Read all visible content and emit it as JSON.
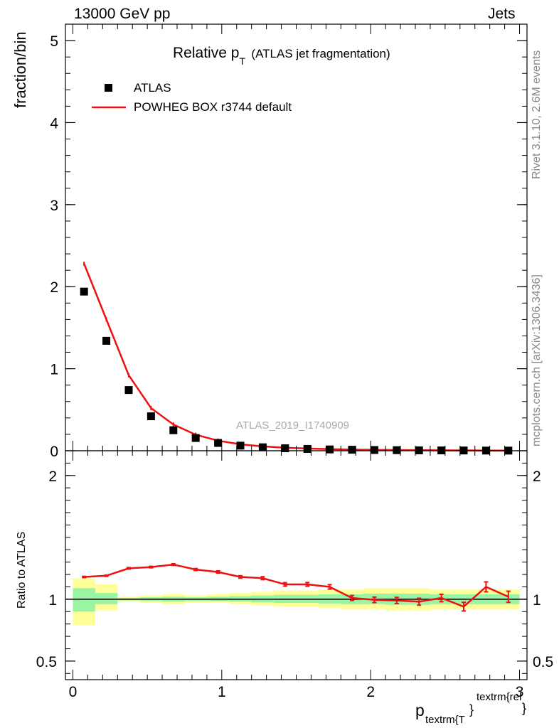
{
  "header": {
    "left": "13000 GeV pp",
    "right": "Jets"
  },
  "side_labels": {
    "rivet": "Rivet 3.1.10,  2.6M events",
    "mcplots": "mcplots.cern.ch [arXiv:1306.3436]"
  },
  "title": {
    "main": "Relative p",
    "sub": "T",
    "note": "(ATLAS jet fragmentation)"
  },
  "ylabel_main": "fraction/bin",
  "ylabel_ratio": "Ratio to ATLAS",
  "xlabel": {
    "base": "p",
    "sub": "textrm{T",
    "brace": "}",
    "sup": "textrm{rel",
    "sup_brace": "}"
  },
  "watermark": "ATLAS_2019_I1740909",
  "legend": [
    {
      "label": "ATLAS",
      "marker": "square",
      "color": "#000000"
    },
    {
      "label": "POWHEG BOX r3744 default",
      "marker": "line",
      "color": "#ee1111"
    }
  ],
  "colors": {
    "data": "#000000",
    "mc": "#ee1111",
    "band_inner": "#99f5a2",
    "band_outer": "#ffff99"
  },
  "chart_data": {
    "type": "line",
    "xlim": [
      -0.05,
      3.05
    ],
    "main": {
      "ylim": [
        0,
        5.2
      ],
      "yticks": [
        0,
        1,
        2,
        3,
        4,
        5
      ],
      "x": [
        0.075,
        0.225,
        0.375,
        0.525,
        0.675,
        0.825,
        0.975,
        1.125,
        1.275,
        1.425,
        1.575,
        1.725,
        1.875,
        2.025,
        2.175,
        2.325,
        2.475,
        2.625,
        2.775,
        2.925
      ],
      "series": [
        {
          "name": "ATLAS",
          "values": [
            1.94,
            1.34,
            0.74,
            0.42,
            0.25,
            0.155,
            0.095,
            0.062,
            0.042,
            0.03,
            0.022,
            0.016,
            0.012,
            0.009,
            0.007,
            0.005,
            0.004,
            0.003,
            0.002,
            0.0015
          ]
        },
        {
          "name": "POWHEG BOX r3744 default",
          "values": [
            2.28,
            1.6,
            0.92,
            0.52,
            0.32,
            0.195,
            0.123,
            0.078,
            0.053,
            0.037,
            0.027,
            0.019,
            0.014,
            0.01,
            0.008,
            0.006,
            0.005,
            0.004,
            0.003,
            0.002
          ]
        }
      ]
    },
    "ratio": {
      "ylim": [
        0.35,
        2.2
      ],
      "yticks": [
        0.5,
        1,
        2
      ],
      "ytick_labels": [
        "0.5",
        "1",
        "2"
      ],
      "reference": 1,
      "bins": [
        [
          0,
          0.15
        ],
        [
          0.15,
          0.3
        ],
        [
          0.3,
          0.45
        ],
        [
          0.45,
          0.6
        ],
        [
          0.6,
          0.75
        ],
        [
          0.75,
          0.9
        ],
        [
          0.9,
          1.05
        ],
        [
          1.05,
          1.2
        ],
        [
          1.2,
          1.35
        ],
        [
          1.35,
          1.5
        ],
        [
          1.5,
          1.65
        ],
        [
          1.65,
          1.8
        ],
        [
          1.8,
          1.95
        ],
        [
          1.95,
          2.1
        ],
        [
          2.1,
          2.25
        ],
        [
          2.25,
          2.4
        ],
        [
          2.4,
          2.55
        ],
        [
          2.55,
          2.7
        ],
        [
          2.7,
          2.85
        ],
        [
          2.85,
          3.0
        ]
      ],
      "band_outer": [
        [
          0.79,
          1.17
        ],
        [
          0.91,
          1.12
        ],
        [
          0.98,
          1.02
        ],
        [
          0.97,
          1.03
        ],
        [
          0.96,
          1.04
        ],
        [
          0.97,
          1.03
        ],
        [
          0.97,
          1.04
        ],
        [
          0.96,
          1.05
        ],
        [
          0.95,
          1.06
        ],
        [
          0.94,
          1.07
        ],
        [
          0.94,
          1.07
        ],
        [
          0.93,
          1.08
        ],
        [
          0.92,
          1.08
        ],
        [
          0.92,
          1.09
        ],
        [
          0.91,
          1.09
        ],
        [
          0.91,
          1.09
        ],
        [
          0.92,
          1.08
        ],
        [
          0.92,
          1.08
        ],
        [
          0.92,
          1.08
        ],
        [
          0.92,
          1.08
        ]
      ],
      "band_inner": [
        [
          0.9,
          1.09
        ],
        [
          0.96,
          1.05
        ],
        [
          0.99,
          1.01
        ],
        [
          0.985,
          1.015
        ],
        [
          0.98,
          1.02
        ],
        [
          0.985,
          1.015
        ],
        [
          0.985,
          1.02
        ],
        [
          0.98,
          1.025
        ],
        [
          0.975,
          1.03
        ],
        [
          0.97,
          1.035
        ],
        [
          0.97,
          1.035
        ],
        [
          0.965,
          1.04
        ],
        [
          0.96,
          1.04
        ],
        [
          0.96,
          1.045
        ],
        [
          0.955,
          1.045
        ],
        [
          0.955,
          1.045
        ],
        [
          0.96,
          1.04
        ],
        [
          0.96,
          1.04
        ],
        [
          0.96,
          1.04
        ],
        [
          0.96,
          1.04
        ]
      ],
      "mc_values": [
        1.18,
        1.19,
        1.25,
        1.26,
        1.28,
        1.24,
        1.22,
        1.18,
        1.17,
        1.12,
        1.12,
        1.1,
        1.01,
        0.995,
        0.99,
        0.98,
        1.01,
        0.94,
        1.1,
        1.02
      ],
      "mc_errors": [
        0.005,
        0.005,
        0.006,
        0.006,
        0.007,
        0.008,
        0.009,
        0.01,
        0.012,
        0.014,
        0.015,
        0.018,
        0.02,
        0.022,
        0.025,
        0.028,
        0.03,
        0.035,
        0.04,
        0.045
      ]
    },
    "xticks": [
      0,
      1,
      2,
      3
    ]
  }
}
